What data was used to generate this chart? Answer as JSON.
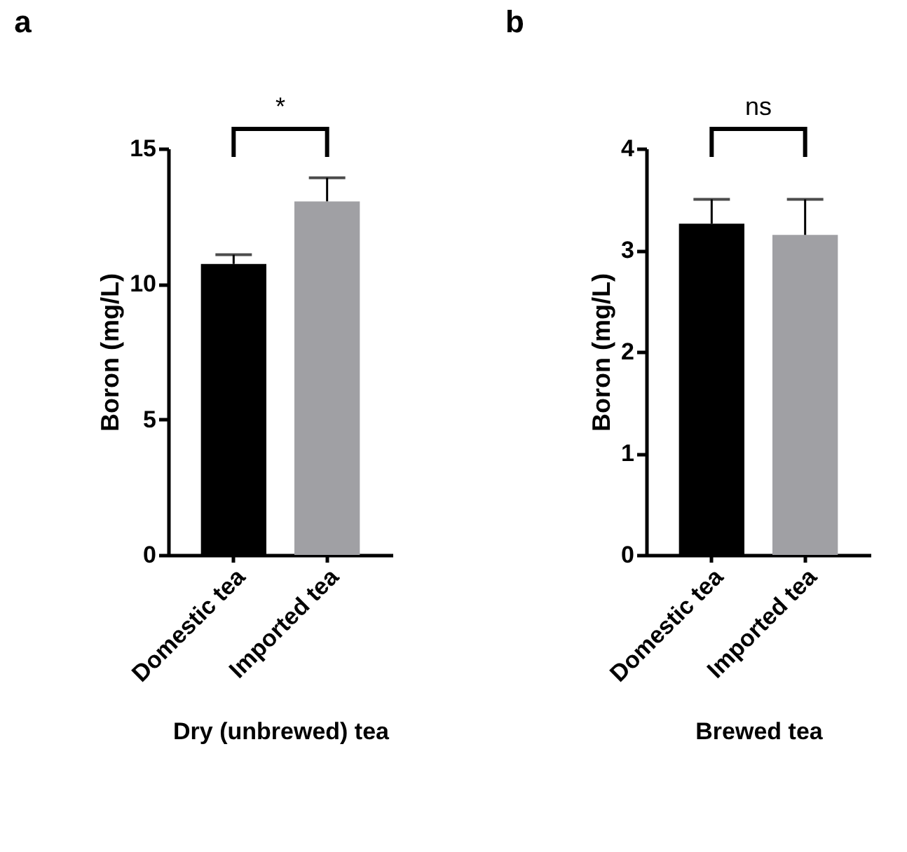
{
  "chart_data": [
    {
      "type": "bar",
      "title": "a",
      "categories": [
        "Domestic tea",
        "Imported tea"
      ],
      "values": [
        10.74,
        13.05
      ],
      "colors": [
        "#000000",
        "#a0a0a4"
      ],
      "errors": [
        [
          10.74,
          11.08
        ],
        [
          13.05,
          13.92
        ]
      ],
      "xlabel": "Dry (unbrewed) tea",
      "ylabel": "Boron (mg/L)",
      "ylim": [
        0,
        15
      ],
      "yticks": [
        0,
        5,
        10,
        15
      ],
      "grid": false,
      "annotations": [
        "*"
      ]
    },
    {
      "type": "bar",
      "title": "b",
      "categories": [
        "Domestic tea",
        "Imported tea"
      ],
      "values": [
        3.26,
        3.15
      ],
      "colors": [
        "#000000",
        "#a0a0a4"
      ],
      "errors": [
        [
          3.26,
          3.5
        ],
        [
          3.15,
          3.5
        ]
      ],
      "xlabel": "Brewed tea",
      "ylabel": "Boron (mg/L)",
      "ylim": [
        0,
        4
      ],
      "yticks": [
        {
          "value": 0,
          "label": "0"
        },
        {
          "value": 1,
          "label": "1"
        },
        {
          "value": 2,
          "label": "2"
        },
        {
          "value": 3,
          "label": "3"
        },
        {
          "value": 4,
          "label": "4"
        }
      ],
      "grid": false,
      "annotations": [
        "ns"
      ]
    }
  ]
}
